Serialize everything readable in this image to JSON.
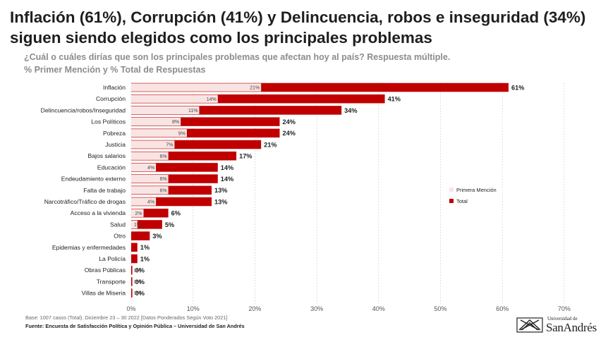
{
  "title": "Inflación (61%), Corrupción (41%) y Delincuencia, robos e inseguridad (34%) siguen siendo elegidos como los principales problemas",
  "subtitle": "¿Cuál o cuáles dirías que son los principales problemas que afectan hoy al país? Respuesta múltiple.",
  "subtitle2": "% Primer Mención y % Total de Respuestas",
  "footer": {
    "base": "Base: 1007 casos (Total). Diciembre 23 – 30 2022 [Datos Ponderados Según Voto 2021]",
    "source": "Fuente: Encuesta de Satisfacción Política y Opinión Pública – Universidad de San Andrés"
  },
  "logo": {
    "line1": "Universidad de",
    "line2": "SanAndrés"
  },
  "colors": {
    "total": "#c00000",
    "primera": "#f9e4e4",
    "grid": "#d0d0d0",
    "text": "#222222"
  },
  "chart_data": {
    "type": "bar",
    "orientation": "horizontal",
    "categories": [
      "Inflación",
      "Corrupción",
      "Delincuencia/robos/Inseguridad",
      "Los Políticos",
      "Pobreza",
      "Justicia",
      "Bajos salarios",
      "Educación",
      "Endeudamiento externo",
      "Falta de trabajo",
      "Narcotráfico/Tráfico de drogas",
      "Acceso a la vivienda",
      "Salud",
      "Otro",
      "Epidemias y enfermedades",
      "La Policía",
      "Obras Públicas",
      "Transporte",
      "Villas de Miseria"
    ],
    "series": [
      {
        "name": "Primera Mención",
        "values": [
          21,
          14,
          11,
          8,
          9,
          7,
          6,
          4,
          6,
          6,
          4,
          2,
          1,
          0,
          0,
          0,
          0,
          0,
          0
        ],
        "labels": [
          "21%",
          "14%",
          "11%",
          "8%",
          "9%",
          "7%",
          "6%",
          "4%",
          "6%",
          "6%",
          "4%",
          "2%",
          "1%",
          "",
          "",
          "",
          "0%",
          "0%",
          "0%"
        ]
      },
      {
        "name": "Total",
        "values": [
          61,
          41,
          34,
          24,
          24,
          21,
          17,
          14,
          14,
          13,
          13,
          6,
          5,
          3,
          1,
          1,
          0,
          0,
          0
        ],
        "labels": [
          "61%",
          "41%",
          "34%",
          "24%",
          "24%",
          "21%",
          "17%",
          "14%",
          "14%",
          "13%",
          "13%",
          "6%",
          "5%",
          "3%",
          "1%",
          "1%",
          "0%",
          "0%",
          "0%"
        ]
      }
    ],
    "xlim": [
      0,
      70
    ],
    "xticks": [
      "0%",
      "10%",
      "20%",
      "30%",
      "40%",
      "50%",
      "60%",
      "70%"
    ],
    "grid": true,
    "legend": "right"
  }
}
